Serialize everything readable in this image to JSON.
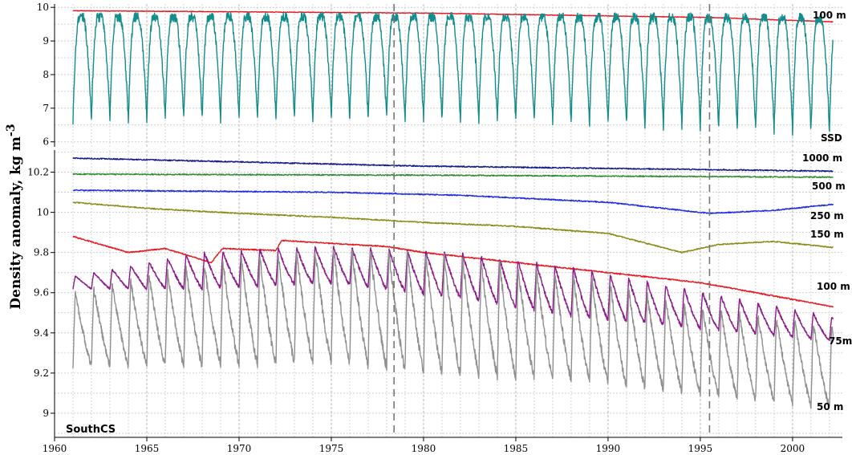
{
  "chart_data": {
    "type": "line",
    "ylabel": "Density anomaly, kg m",
    "ylabel_sup": "-3",
    "x_ticks": [
      "1960",
      "1965",
      "1970",
      "1975",
      "1980",
      "1985",
      "1990",
      "1995",
      "2000"
    ],
    "xlim": [
      1960,
      2002.7
    ],
    "grid": true,
    "event_lines_x": [
      1978.4,
      1995.5
    ],
    "colors": {
      "red": "#e8161d",
      "teal": "#138c8c",
      "navy": "#111a88",
      "green": "#2e8b2e",
      "blue": "#1c2de0",
      "olive": "#8a8a12",
      "purple": "#8b1a8b",
      "gray": "#909090"
    },
    "panels": [
      {
        "id": "top",
        "ylim": [
          5.85,
          10.1
        ],
        "y_ticks": [
          "6",
          "7",
          "8",
          "9",
          "10"
        ],
        "series": [
          {
            "key": "100m_top",
            "type": "trend",
            "color": "red",
            "x": [
              1961.0,
              1980.0,
              1995.5,
              2002.2
            ],
            "y": [
              9.9,
              9.83,
              9.7,
              9.57
            ]
          },
          {
            "key": "ssd",
            "type": "seasonal",
            "color": "teal",
            "start": 1961.0,
            "end": 2002.2,
            "high": [
              9.7,
              9.72,
              9.7,
              9.68
            ],
            "low": [
              6.65,
              6.7,
              6.55,
              6.3
            ]
          }
        ],
        "labels": [
          {
            "key": "100m_top",
            "text": "100 m"
          },
          {
            "key": "ssd",
            "text": "SSD"
          }
        ]
      },
      {
        "id": "bottom",
        "region": "SouthCS",
        "ylim": [
          8.88,
          10.31
        ],
        "y_ticks": [
          "9",
          "9.2",
          "9.4",
          "9.6",
          "9.8",
          "10",
          "10.2"
        ],
        "series": [
          {
            "key": "1000m",
            "type": "trend",
            "color": "navy",
            "x": [
              1961.0,
              1980.0,
              2002.2
            ],
            "y": [
              10.27,
              10.23,
              10.205
            ]
          },
          {
            "key": "500m",
            "type": "trend",
            "color": "green",
            "x": [
              1961.0,
              1980.0,
              2002.2
            ],
            "y": [
              10.19,
              10.185,
              10.175
            ]
          },
          {
            "key": "250m",
            "type": "trend",
            "color": "blue",
            "x": [
              1961.0,
              1975.0,
              1982.0,
              1990.0,
              1995.5,
              1999.0,
              2002.2
            ],
            "y": [
              10.11,
              10.1,
              10.085,
              10.05,
              9.995,
              10.01,
              10.04
            ]
          },
          {
            "key": "150m",
            "type": "trend",
            "color": "olive",
            "x": [
              1961.0,
              1965.0,
              1970.0,
              1975.0,
              1980.0,
              1985.0,
              1990.0,
              1994.0,
              1996.0,
              1999.0,
              2002.2
            ],
            "y": [
              10.05,
              10.02,
              9.995,
              9.975,
              9.95,
              9.93,
              9.895,
              9.8,
              9.84,
              9.855,
              9.825
            ]
          },
          {
            "key": "100m",
            "type": "trend",
            "color": "red",
            "x": [
              1961.0,
              1964.0,
              1966.0,
              1968.5,
              1969.1,
              1972.0,
              1972.3,
              1978.0,
              1980.0,
              1985.0,
              1990.0,
              1995.0,
              2002.2
            ],
            "y": [
              9.88,
              9.8,
              9.82,
              9.75,
              9.82,
              9.81,
              9.86,
              9.83,
              9.8,
              9.75,
              9.7,
              9.65,
              9.53
            ]
          },
          {
            "key": "75m",
            "type": "seasonal",
            "color": "purple",
            "start": 1961.0,
            "end": 2002.2,
            "high": [
              9.68,
              9.8,
              9.83,
              9.8,
              9.72,
              9.6,
              9.48
            ],
            "low": [
              9.62,
              9.62,
              9.65,
              9.58,
              9.48,
              9.42,
              9.36
            ]
          },
          {
            "key": "50m",
            "type": "seasonal",
            "color": "gray",
            "start": 1961.0,
            "end": 2002.2,
            "high": [
              9.6,
              9.74,
              9.82,
              9.78,
              9.68,
              9.52,
              9.44
            ],
            "low": [
              9.24,
              9.24,
              9.26,
              9.2,
              9.17,
              9.1,
              9.03
            ]
          }
        ],
        "labels": [
          {
            "key": "1000m",
            "text": "1000 m"
          },
          {
            "key": "500m",
            "text": "500 m"
          },
          {
            "key": "250m",
            "text": "250 m"
          },
          {
            "key": "150m",
            "text": "150 m"
          },
          {
            "key": "100m",
            "text": "100 m"
          },
          {
            "key": "75m",
            "text": "75m"
          },
          {
            "key": "50m",
            "text": "50 m"
          }
        ]
      }
    ]
  }
}
